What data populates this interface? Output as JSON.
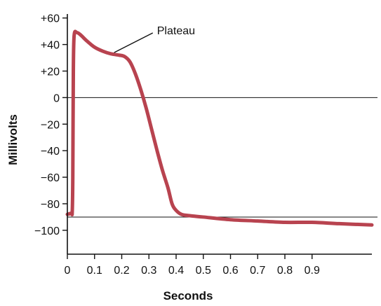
{
  "chart_data": {
    "type": "line",
    "xlabel": "Seconds",
    "ylabel": "Millivolts",
    "xlim": [
      0,
      1.12
    ],
    "ylim": [
      -118,
      63
    ],
    "x_ticks": [
      0,
      0.1,
      0.2,
      0.3,
      0.4,
      0.5,
      0.6,
      0.7,
      0.8,
      0.9
    ],
    "x_tick_labels": [
      "0",
      "0.1",
      "0.2",
      "0.3",
      "0.4",
      "0.5",
      "0.6",
      "0.7",
      "0.8",
      "0.9"
    ],
    "y_ticks": [
      60,
      40,
      20,
      0,
      -20,
      -40,
      -60,
      -80,
      -100
    ],
    "y_tick_labels": [
      "+60",
      "+40",
      "+20",
      "0",
      "−20",
      "−40",
      "−60",
      "−80",
      "−100"
    ],
    "reference_lines": [
      0,
      -90
    ],
    "annotations": [
      {
        "text": "Plateau",
        "x": 0.18,
        "y": 34
      }
    ],
    "series": [
      {
        "color": "#b8434f",
        "x": [
          0,
          0.015,
          0.018,
          0.02,
          0.022,
          0.025,
          0.035,
          0.05,
          0.07,
          0.1,
          0.13,
          0.16,
          0.19,
          0.21,
          0.23,
          0.25,
          0.27,
          0.29,
          0.31,
          0.33,
          0.35,
          0.37,
          0.385,
          0.4,
          0.42,
          0.45,
          0.5,
          0.6,
          0.7,
          0.8,
          0.9,
          1.0,
          1.12
        ],
        "y": [
          -88,
          -87,
          -86,
          -60,
          20,
          47,
          49,
          47,
          43,
          38,
          35,
          33,
          32,
          31,
          27,
          18,
          6,
          -8,
          -24,
          -40,
          -55,
          -68,
          -80,
          -85,
          -88,
          -89,
          -90,
          -92,
          -93,
          -94,
          -94,
          -95,
          -96
        ]
      }
    ]
  }
}
